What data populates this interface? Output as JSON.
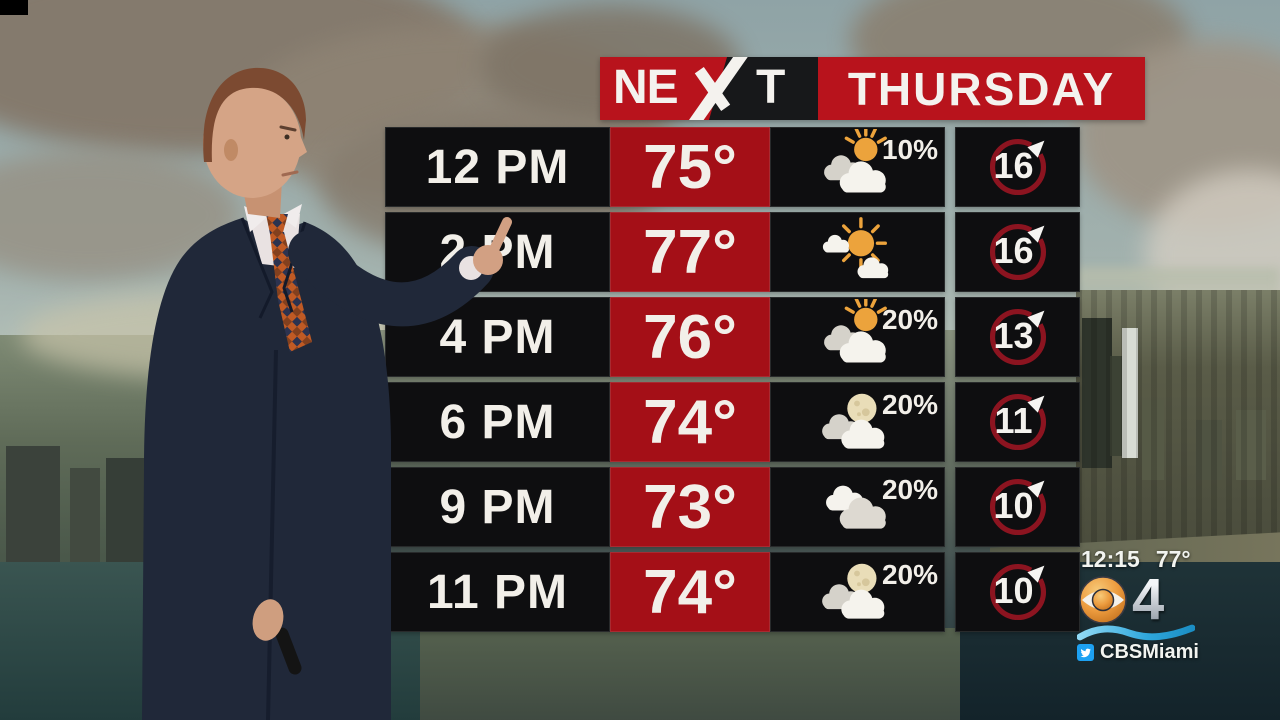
{
  "header": {
    "brand": "NEXT",
    "brand_left": "NE",
    "brand_right": "T",
    "day": "THURSDAY"
  },
  "forecast_rows": [
    {
      "time": "12 PM",
      "temp": "75°",
      "icon": "sun-behind-cloud",
      "precip": "10%",
      "wind": "16",
      "wind_dir": "NE"
    },
    {
      "time": "2 PM",
      "temp": "77°",
      "icon": "mostly-sunny",
      "precip": "",
      "wind": "16",
      "wind_dir": "NE"
    },
    {
      "time": "4 PM",
      "temp": "76°",
      "icon": "sun-behind-cloud",
      "precip": "20%",
      "wind": "13",
      "wind_dir": "NE"
    },
    {
      "time": "6 PM",
      "temp": "74°",
      "icon": "moon-behind-cloud",
      "precip": "20%",
      "wind": "11",
      "wind_dir": "NE"
    },
    {
      "time": "9 PM",
      "temp": "73°",
      "icon": "cloudy",
      "precip": "20%",
      "wind": "10",
      "wind_dir": "NE"
    },
    {
      "time": "11 PM",
      "temp": "74°",
      "icon": "moon-behind-cloud",
      "precip": "20%",
      "wind": "10",
      "wind_dir": "NE"
    }
  ],
  "station_bug": {
    "clock": "12:15",
    "current_temp": "77°",
    "network": "CBS",
    "channel": "4",
    "social_handle": "CBSMiami"
  },
  "colors": {
    "banner_red": "#b8131c",
    "temp_cell_red": "#a40f17",
    "cell_black": "#0e0e10",
    "wind_ring": "#8c1420",
    "text_white": "#f2efe9",
    "sun_orange": "#eca33c",
    "moon_cream": "#e9ddb8",
    "cloud_white": "#f5f3ed",
    "cloud_gray": "#d5d2ca",
    "wave_blue": "#2fa7dc",
    "twitter_blue": "#1da1f2",
    "cbs_eye_orange": "#e89a3a"
  }
}
